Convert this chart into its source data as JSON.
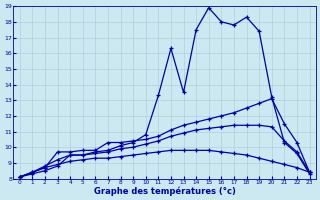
{
  "xlabel": "Graphe des températures (°c)",
  "ylabel": "",
  "xlim": [
    -0.5,
    23.5
  ],
  "ylim": [
    8,
    19
  ],
  "yticks": [
    8,
    9,
    10,
    11,
    12,
    13,
    14,
    15,
    16,
    17,
    18,
    19
  ],
  "xticks": [
    0,
    1,
    2,
    3,
    4,
    5,
    6,
    7,
    8,
    9,
    10,
    11,
    12,
    13,
    14,
    15,
    16,
    17,
    18,
    19,
    20,
    21,
    22,
    23
  ],
  "background_color": "#cce8f0",
  "grid_color": "#aac8d8",
  "line_color": "#0000aa",
  "line_width": 0.9,
  "marker": "+",
  "marker_size": 3.5,
  "marker_lw": 0.9,
  "curves": [
    [
      8.1,
      8.3,
      8.5,
      8.8,
      9.5,
      9.5,
      9.7,
      9.8,
      10.1,
      10.3,
      10.8,
      13.3,
      16.3,
      13.5,
      17.5,
      18.9,
      18.0,
      17.8,
      18.3,
      17.4,
      13.2,
      10.3,
      9.6,
      8.3
    ],
    [
      8.1,
      8.4,
      8.7,
      9.7,
      9.7,
      9.8,
      9.8,
      10.3,
      10.3,
      10.4,
      10.5,
      10.7,
      11.1,
      11.4,
      11.6,
      11.8,
      12.0,
      12.2,
      12.5,
      12.8,
      13.1,
      11.5,
      10.3,
      8.4
    ],
    [
      8.1,
      8.4,
      8.8,
      9.2,
      9.5,
      9.5,
      9.6,
      9.7,
      9.9,
      10.0,
      10.2,
      10.4,
      10.7,
      10.9,
      11.1,
      11.2,
      11.3,
      11.4,
      11.4,
      11.4,
      11.3,
      10.4,
      9.7,
      8.4
    ],
    [
      8.1,
      8.4,
      8.7,
      8.9,
      9.1,
      9.2,
      9.3,
      9.3,
      9.4,
      9.5,
      9.6,
      9.7,
      9.8,
      9.8,
      9.8,
      9.8,
      9.7,
      9.6,
      9.5,
      9.3,
      9.1,
      8.9,
      8.7,
      8.4
    ]
  ]
}
